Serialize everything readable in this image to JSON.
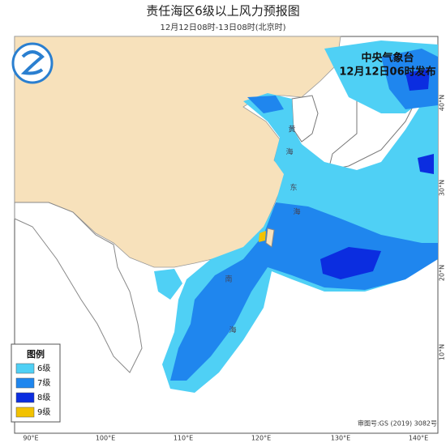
{
  "header": {
    "title": "责任海区6级以上风力预报图",
    "subtitle": "12月12日08时-13日08时(北京时)"
  },
  "issuer": {
    "name": "中央气象台",
    "time": "12月12日06时发布"
  },
  "legend": {
    "title": "图例",
    "items": [
      {
        "label": "6级",
        "color": "#4fd0f5"
      },
      {
        "label": "7级",
        "color": "#1f86ee"
      },
      {
        "label": "8级",
        "color": "#0b2de0"
      },
      {
        "label": "9级",
        "color": "#f2c200"
      }
    ]
  },
  "map": {
    "lon_labels": [
      "90°E",
      "100°E",
      "110°E",
      "120°E",
      "130°E",
      "140°E"
    ],
    "lat_labels": [
      "40°N",
      "30°N",
      "20°N",
      "10°N"
    ],
    "sea_labels": [
      "黄",
      "海",
      "东",
      "海",
      "南",
      "海"
    ]
  },
  "footer": {
    "approval": "审图号:GS (2019) 3082号"
  }
}
